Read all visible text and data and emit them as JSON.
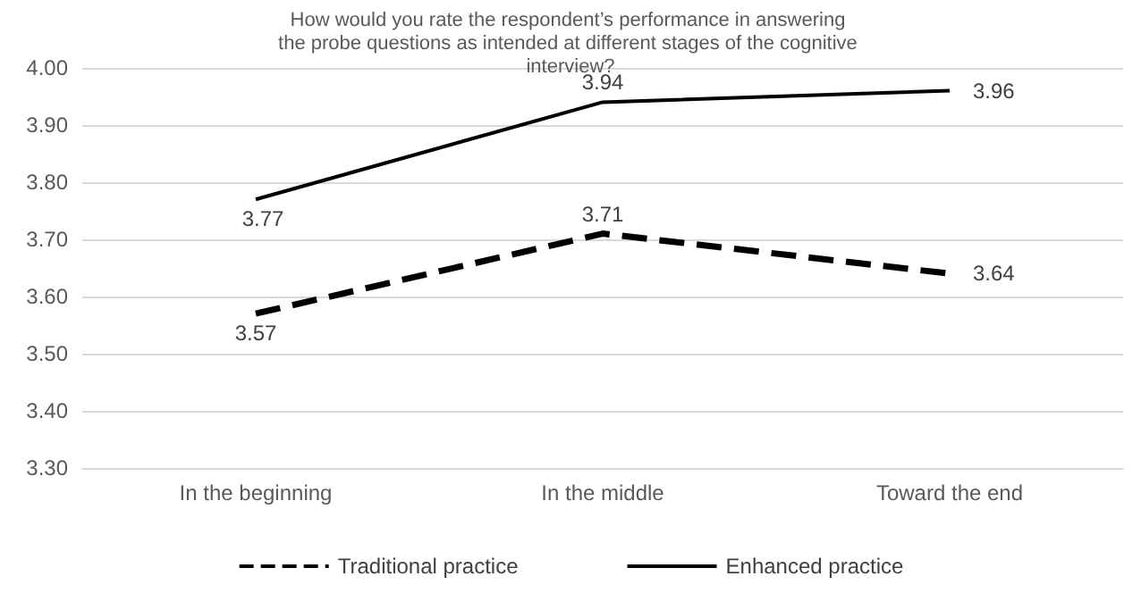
{
  "chart_data": {
    "type": "line",
    "title": "How would you rate the respondent’s performance in answering the probe questions as intended at different stages of the cognitive interview?",
    "categories": [
      "In the beginning",
      "In the middle",
      "Toward the end"
    ],
    "series": [
      {
        "name": "Traditional practice",
        "color": "#000000",
        "line_style": "dashed",
        "values": [
          3.57,
          3.71,
          3.64
        ]
      },
      {
        "name": "Enhanced practice",
        "color": "#000000",
        "line_style": "solid",
        "values": [
          3.77,
          3.94,
          3.96
        ]
      }
    ],
    "ylim": [
      3.3,
      4.0
    ],
    "yticks": [
      {
        "value": 3.3,
        "label": "3.30"
      },
      {
        "value": 3.4,
        "label": "3.40"
      },
      {
        "value": 3.5,
        "label": "3.50"
      },
      {
        "value": 3.6,
        "label": "3.60"
      },
      {
        "value": 3.7,
        "label": "3.70"
      },
      {
        "value": 3.8,
        "label": "3.80"
      },
      {
        "value": 3.9,
        "label": "3.90"
      },
      {
        "value": 4.0,
        "label": "4.00"
      }
    ],
    "grid": "y",
    "legend": "bottom",
    "marker": "none",
    "data_labels": true
  }
}
